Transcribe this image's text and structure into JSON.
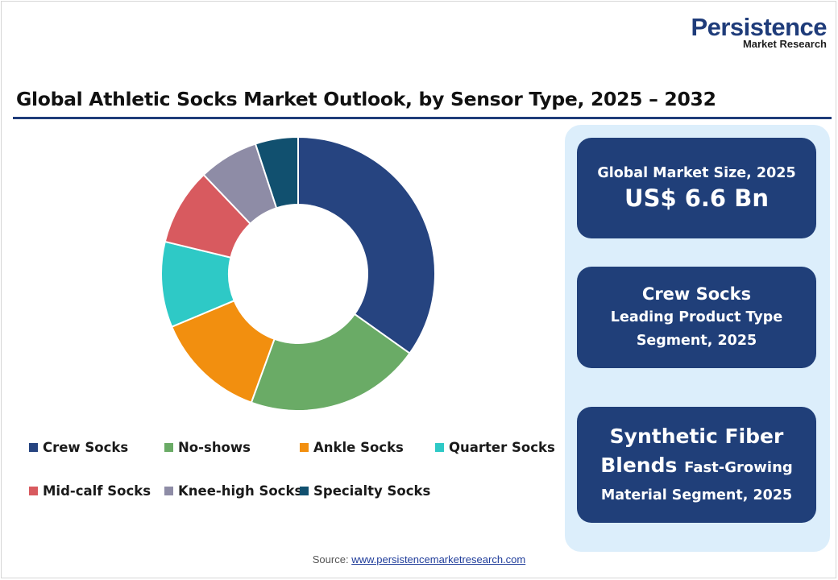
{
  "logo": {
    "main": "Persistence",
    "sub": "Market Research"
  },
  "title": "Global Athletic Socks Market Outlook, by Sensor Type, 2025 – 2032",
  "chart_data": {
    "type": "pie",
    "donut": true,
    "categories": [
      "Crew Socks",
      "No-shows",
      "Ankle Socks",
      "Quarter Socks",
      "Mid-calf Socks",
      "Knee-high Socks",
      "Specialty Socks"
    ],
    "values": [
      34.5,
      20.5,
      13.0,
      10.0,
      9.0,
      7.0,
      5.0
    ],
    "colors": [
      "#264480",
      "#6aab66",
      "#f28f0f",
      "#2ec9c6",
      "#d85a5f",
      "#8e8ca6",
      "#11506f"
    ],
    "legend": "bottom"
  },
  "cards": {
    "market_size_label": "Global Market Size, 2025",
    "market_size_value": "US$ 6.6 Bn",
    "leading_name": "Crew Socks",
    "leading_desc_1": "Leading Product Type",
    "leading_desc_2": "Segment, 2025",
    "fast_name_1": "Synthetic Fiber",
    "fast_name_2": "Blends",
    "fast_desc_1": "Fast-Growing",
    "fast_desc_2": "Material Segment, 2025"
  },
  "source": {
    "label": "Source:",
    "link_text": "www.persistencemarketresearch.com"
  }
}
